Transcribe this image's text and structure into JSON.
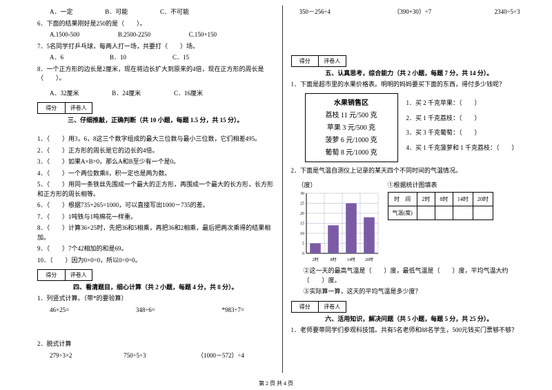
{
  "left": {
    "q5_opts": {
      "a": "A．一定",
      "b": "B．可能",
      "c": "C．不可能"
    },
    "q6": "6．下面的结果刚好是250的是（　　）。",
    "q6_opts": {
      "a": "A.1500-500",
      "b": "B.2500-2250",
      "c": "C.150+150"
    },
    "q7": "7．5名同学打乒乓球，每两人打一场，共要打（　　）场。",
    "q7_opts": {
      "a": "A．6",
      "b": "B．10",
      "c": "C．15"
    },
    "q8": "8．一个正方形的边长是2厘米，现在将边长扩大到原来的4倍，现在正方形的周长是（　　）。",
    "q8_opts": {
      "a": "A．32厘米",
      "b": "B．24厘米",
      "c": "C．16厘米"
    },
    "score_a": "得分",
    "score_b": "评卷人",
    "sec3_title": "三、仔细推敲，正确判断（共 10 小题，每题 1.5 分，共 15 分）。",
    "j1": "1．（　　）用3，6，8这三个数字组成的最大三位数与最小三位数，它们相差495。",
    "j2": "2．（　　）正方形的周长是它的边长的4倍。",
    "j3": "3．（　　）如果A×B=0，那么A和B至少有一个是0。",
    "j4": "4．（　　）一个两位数乘8，积一定也是两为数。",
    "j5": "5．（　　）用同一条铁丝先围成一个最大的正方形，再围成一个最大的长方形，长方形和正方形的周长相等。",
    "j6": "6．（　　）根据735+265=1000，可以直接写出1000－735的差。",
    "j7": "7．（　　）1吨铁与1吨棉花一样重。",
    "j8": "8．（　　）计算36×25时，先把36和5相乘，再把36和2相乘，最后把两次乘得的结果相加。",
    "j9": "9．（　　）7个42相加的和是69。",
    "j10": "10．（　　）因为0×0=0，所以0÷0=0。",
    "sec4_title": "四、看清题目，细心计算（共 2 小题，每题 4 分，共 8 分）。",
    "c1": "1．列竖式计算。（带*的要验算）",
    "c1a": "46×25=",
    "c1b": "348÷6=",
    "c1c": "*983÷7=",
    "c2": "2．脱式计算",
    "c2a": "279÷3×2",
    "c2b": "750÷5÷3",
    "c2c": "（1000－572）÷4"
  },
  "right": {
    "top_a": "350－256÷4",
    "top_b": "（390+30）÷7",
    "top_c": "2340÷5÷3",
    "score_a": "得分",
    "score_b": "评卷人",
    "sec5_title": "五、认真思考，综合能力（共 2 小题，每题 7 分，共 14 分）。",
    "q1": "1．下面是超市里的水果价格表。明明的妈妈要买下面的东西，得付多少钱呢？",
    "price_title": "水果销售区",
    "p1": "荔枝 11 元/500 克",
    "p2": "苹果 3 元/500 克",
    "p3": "菠萝 6 元/1000 克",
    "p4": "葡萄 8 元/1000 克",
    "b1": "1．买 2 千克苹果：（　　）",
    "b2": "2．买 1 千克荔枝：（　　）",
    "b3": "3．买 3 千克葡萄：（　　）",
    "b4": "4．买 1 千克菠萝和 1 千克荔枝：（　　）",
    "q2": "2．下面是气温自测仪上记录的某天四个不同时间的气温情况。",
    "chart_y_label": "（度）",
    "chart_sub": "①根据统计图填表",
    "chart_y_ticks": [
      "30",
      "25",
      "20",
      "15",
      "10",
      "5",
      "0"
    ],
    "chart_x_ticks": [
      "2时",
      "8时",
      "14时",
      "20时"
    ],
    "chart_values": [
      5,
      14,
      25,
      18
    ],
    "chart_colors": {
      "bar": "#7b5ba6",
      "grid": "#a9a9c9"
    },
    "tbl_h": "时　间",
    "tbl_c1": "2时",
    "tbl_c2": "8时",
    "tbl_c3": "14时",
    "tbl_c4": "20时",
    "tbl_r": "气温(度)",
    "note2": "②这一天的最高气温是（　　）度，最低气温是（　　）度，平均气温大约（　　）度。",
    "note3": "③实际算一算，这天的平均气温是多少度？",
    "sec6_title": "六、活用知识，解决问题（共 5 小题，每题 5 分，共 25 分）。",
    "q6_1": "1．老师要带同学们参观科技馆。共有5名老师和88名学生，500元钱买门票够不够？"
  },
  "footer": "第 2 页 共 4 页"
}
